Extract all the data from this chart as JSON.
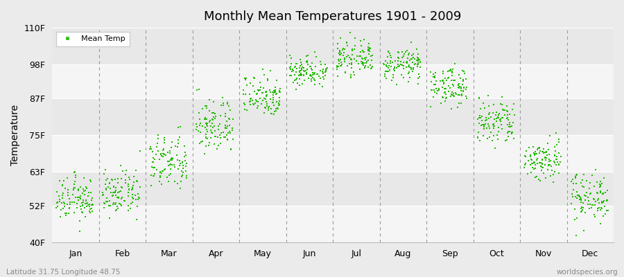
{
  "title": "Monthly Mean Temperatures 1901 - 2009",
  "ylabel": "Temperature",
  "ytick_labels": [
    "40F",
    "52F",
    "63F",
    "75F",
    "87F",
    "98F",
    "110F"
  ],
  "ytick_values": [
    40,
    52,
    63,
    75,
    87,
    98,
    110
  ],
  "ylim": [
    40,
    110
  ],
  "months": [
    "Jan",
    "Feb",
    "Mar",
    "Apr",
    "May",
    "Jun",
    "Jul",
    "Aug",
    "Sep",
    "Oct",
    "Nov",
    "Dec"
  ],
  "dot_color": "#22BB00",
  "bg_color": "#EBEBEB",
  "bg_band_light": "#F5F5F5",
  "bg_band_dark": "#E8E8E8",
  "legend_label": "Mean Temp",
  "bottom_left": "Latitude 31.75 Longitude 48.75",
  "bottom_right": "worldspecies.org",
  "monthly_mean": [
    54,
    56,
    66,
    78,
    88,
    96,
    100,
    98,
    91,
    79,
    67,
    55
  ],
  "monthly_std": [
    3.5,
    3.5,
    4.5,
    4.5,
    3.5,
    2.5,
    2.5,
    2.5,
    3.0,
    4.0,
    3.5,
    4.0
  ],
  "n_years": 109
}
